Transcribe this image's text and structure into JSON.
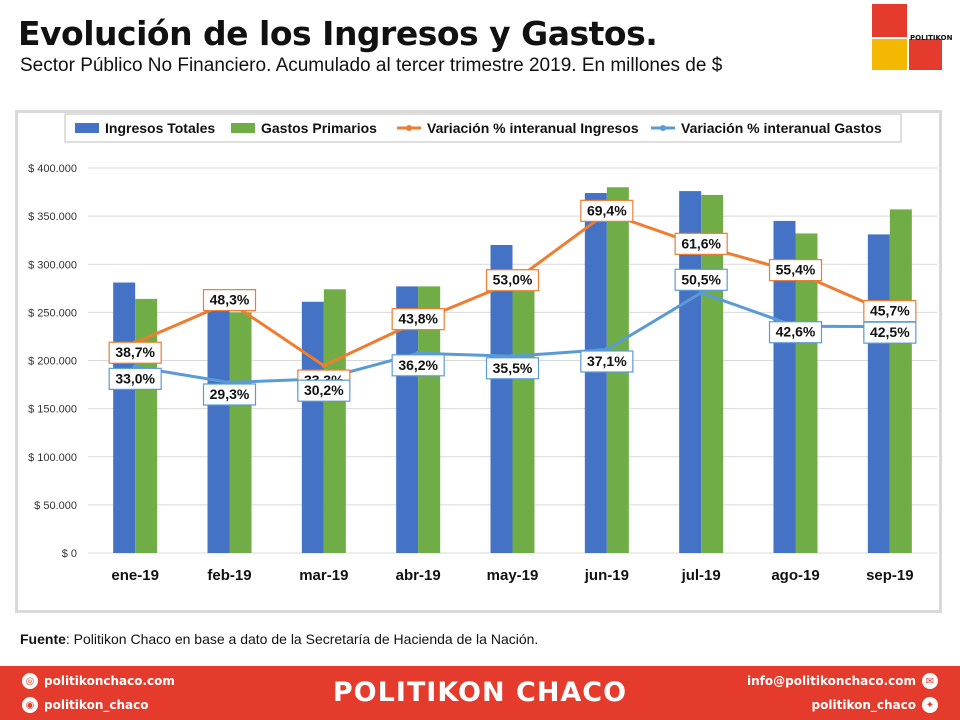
{
  "header": {
    "title": "Evolución de los Ingresos y Gastos.",
    "subtitle": "Sector Público No Financiero. Acumulado  al tercer trimestre 2019. En millones de $"
  },
  "logo": {
    "text": "POLITIKON",
    "colors": [
      "#e53b2c",
      "#f5b800",
      "#e53b2c"
    ]
  },
  "chart_data": {
    "type": "bar",
    "categories": [
      "ene-19",
      "feb-19",
      "mar-19",
      "abr-19",
      "may-19",
      "jun-19",
      "jul-19",
      "ago-19",
      "sep-19"
    ],
    "series": [
      {
        "name": "Ingresos Totales",
        "type": "bar",
        "color": "#4472c4",
        "values": [
          281000,
          256000,
          261000,
          277000,
          320000,
          374000,
          376000,
          345000,
          331000
        ]
      },
      {
        "name": "Gastos Primarios",
        "type": "bar",
        "color": "#70ad47",
        "values": [
          264000,
          250000,
          274000,
          277000,
          293000,
          380000,
          372000,
          332000,
          357000
        ]
      },
      {
        "name": "Variación % interanual Ingresos",
        "type": "line",
        "color": "#ed7d31",
        "values": [
          38.7,
          48.3,
          33.3,
          43.8,
          53.0,
          69.4,
          61.6,
          55.4,
          45.7
        ],
        "labels": [
          "38,7%",
          "48,3%",
          "33,3%",
          "43,8%",
          "53,0%",
          "69,4%",
          "61,6%",
          "55,4%",
          "45,7%"
        ]
      },
      {
        "name": "Variación % interanual Gastos",
        "type": "line",
        "color": "#5b9bd5",
        "values": [
          33.0,
          29.3,
          30.2,
          36.2,
          35.5,
          37.1,
          50.5,
          42.6,
          42.5
        ],
        "labels": [
          "33,0%",
          "29,3%",
          "30,2%",
          "36,2%",
          "35,5%",
          "37,1%",
          "50,5%",
          "42,6%",
          "42,5%"
        ]
      }
    ],
    "y_ticks": [
      "$ 0",
      "$ 50.000",
      "$ 100.000",
      "$ 150.000",
      "$ 200.000",
      "$ 250.000",
      "$ 300.000",
      "$ 350.000",
      "$ 400.000"
    ],
    "ylim": [
      0,
      400000
    ],
    "y2lim": [
      -11,
      80
    ],
    "grid": true,
    "legend": "top"
  },
  "source": {
    "label": "Fuente",
    "text": ":  Politikon  Chaco  en  base  a  dato  de  la  Secretaría  de  Hacienda  de  la  Nación."
  },
  "footer": {
    "brand": "POLITIKON CHACO",
    "website": "politikonchaco.com",
    "instagram": "politikon_chaco",
    "email": "info@politikonchaco.com",
    "twitter": "politikon_chaco"
  }
}
